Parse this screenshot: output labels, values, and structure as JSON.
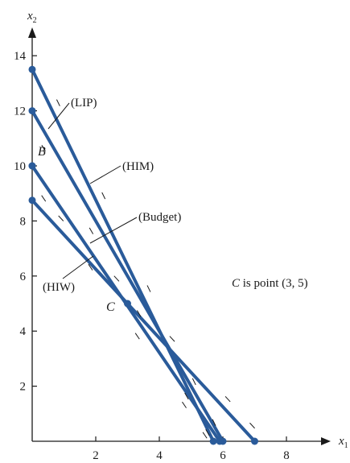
{
  "chart_data": {
    "type": "line",
    "xlabel": "x",
    "xlabel_sub": "1",
    "ylabel": "x",
    "ylabel_sub": "2",
    "xlim": [
      0,
      9
    ],
    "ylim": [
      0,
      15
    ],
    "x_ticks": [
      2,
      4,
      6,
      8
    ],
    "y_ticks": [
      2,
      4,
      6,
      8,
      10,
      12,
      14
    ],
    "grid": false,
    "series": [
      {
        "name": "(LIP)",
        "points": [
          [
            0,
            12
          ],
          [
            6,
            0
          ]
        ],
        "color": "#2a5b9a"
      },
      {
        "name": "(HIM)",
        "points": [
          [
            0,
            13.5
          ],
          [
            5.7,
            0
          ]
        ],
        "color": "#2a5b9a"
      },
      {
        "name": "(Budget)",
        "points": [
          [
            0,
            10
          ],
          [
            5.9,
            0
          ]
        ],
        "color": "#2a5b9a"
      },
      {
        "name": "(HIW)",
        "points": [
          [
            0,
            8.75
          ],
          [
            7,
            0
          ]
        ],
        "color": "#2a5b9a"
      }
    ],
    "points": [
      {
        "label": "B",
        "x": 0,
        "y": 10
      },
      {
        "label": "C",
        "x": 3,
        "y": 5
      }
    ],
    "note": {
      "italic": "C",
      "rest": " is point (3, 5)"
    },
    "colors": {
      "line": "#2a5b9a",
      "axis": "#1a1a1a"
    }
  }
}
